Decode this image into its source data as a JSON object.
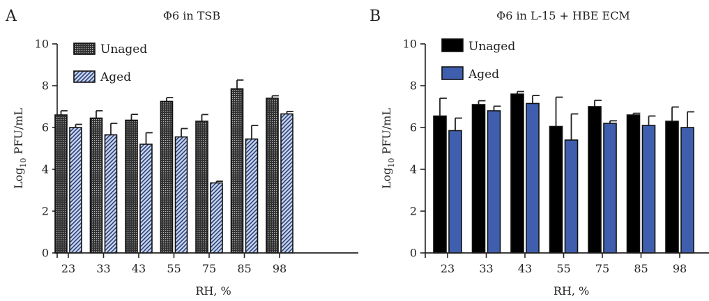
{
  "chart_data": [
    {
      "type": "bar",
      "panel_label": "A",
      "title": "Φ6 in TSB",
      "xlabel": "RH, %",
      "ylabel": {
        "prefix": "Log",
        "subscript": "10",
        "suffix": " PFU/mL"
      },
      "ylim": [
        0,
        10
      ],
      "yticks": [
        "0",
        "2",
        "4",
        "6",
        "8",
        "10"
      ],
      "categories": [
        "23",
        "33",
        "43",
        "55",
        "75",
        "85",
        "98"
      ],
      "legend_position": "top-left",
      "grid": false,
      "series": [
        {
          "name": "Unaged",
          "values": [
            6.6,
            6.45,
            6.35,
            7.25,
            6.3,
            7.85,
            7.4
          ],
          "errors": [
            0.2,
            0.35,
            0.28,
            0.18,
            0.32,
            0.42,
            0.12
          ],
          "color": "#444444",
          "pattern": "dotted-dark"
        },
        {
          "name": "Aged",
          "values": [
            6.0,
            5.65,
            5.2,
            5.55,
            3.35,
            5.45,
            6.65
          ],
          "errors": [
            0.15,
            0.55,
            0.55,
            0.4,
            0.08,
            0.65,
            0.12
          ],
          "color": "#a8bfe0",
          "pattern": "diagonal-stripes"
        }
      ]
    },
    {
      "type": "bar",
      "panel_label": "B",
      "title": "Φ6 in L-15 + HBE ECM",
      "xlabel": "RH, %",
      "ylabel": {
        "prefix": "Log",
        "subscript": "10",
        "suffix": " PFU/mL"
      },
      "ylim": [
        0,
        10
      ],
      "yticks": [
        "0",
        "2",
        "4",
        "6",
        "8",
        "10"
      ],
      "categories": [
        "23",
        "33",
        "43",
        "55",
        "75",
        "85",
        "98"
      ],
      "legend_position": "top-left",
      "grid": false,
      "series": [
        {
          "name": "Unaged",
          "values": [
            6.55,
            7.1,
            7.6,
            6.05,
            7.0,
            6.6,
            6.3
          ],
          "errors": [
            0.85,
            0.18,
            0.12,
            1.4,
            0.3,
            0.08,
            0.68
          ],
          "color": "#000000",
          "pattern": "solid"
        },
        {
          "name": "Aged",
          "values": [
            5.85,
            6.8,
            7.15,
            5.4,
            6.2,
            6.1,
            6.0
          ],
          "errors": [
            0.6,
            0.22,
            0.38,
            1.25,
            0.12,
            0.45,
            0.75
          ],
          "color": "#3f5fae",
          "pattern": "solid"
        }
      ]
    }
  ]
}
